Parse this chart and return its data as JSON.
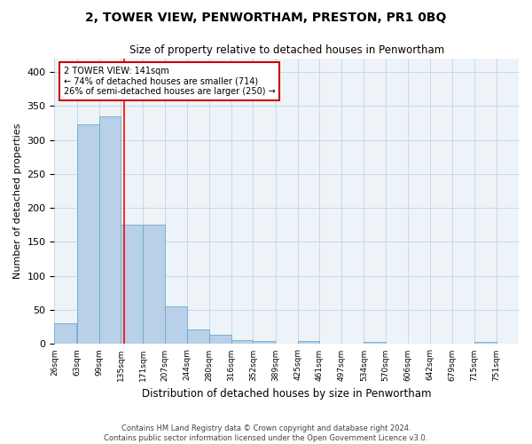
{
  "title": "2, TOWER VIEW, PENWORTHAM, PRESTON, PR1 0BQ",
  "subtitle": "Size of property relative to detached houses in Penwortham",
  "xlabel": "Distribution of detached houses by size in Penwortham",
  "ylabel": "Number of detached properties",
  "footer_line1": "Contains HM Land Registry data © Crown copyright and database right 2024.",
  "footer_line2": "Contains public sector information licensed under the Open Government Licence v3.0.",
  "bin_labels": [
    "26sqm",
    "63sqm",
    "99sqm",
    "135sqm",
    "171sqm",
    "207sqm",
    "244sqm",
    "280sqm",
    "316sqm",
    "352sqm",
    "389sqm",
    "425sqm",
    "461sqm",
    "497sqm",
    "534sqm",
    "570sqm",
    "606sqm",
    "642sqm",
    "679sqm",
    "715sqm",
    "751sqm"
  ],
  "bin_edges": [
    26,
    63,
    99,
    135,
    171,
    207,
    244,
    280,
    316,
    352,
    389,
    425,
    461,
    497,
    534,
    570,
    606,
    642,
    679,
    715,
    751
  ],
  "bar_heights": [
    31,
    323,
    334,
    175,
    175,
    55,
    22,
    14,
    6,
    5,
    0,
    5,
    0,
    0,
    3,
    0,
    0,
    0,
    0,
    3,
    0
  ],
  "bar_color": "#b8d0e8",
  "bar_edge_color": "#6aabcf",
  "grid_color": "#c8d8e8",
  "bg_color": "#eef3f8",
  "red_line_x": 141,
  "annotation_line1": "2 TOWER VIEW: 141sqm",
  "annotation_line2": "← 74% of detached houses are smaller (714)",
  "annotation_line3": "26% of semi-detached houses are larger (250) →",
  "annotation_box_color": "#ffffff",
  "annotation_box_edge": "#cc0000",
  "ylim": [
    0,
    420
  ],
  "yticks": [
    0,
    50,
    100,
    150,
    200,
    250,
    300,
    350,
    400
  ]
}
